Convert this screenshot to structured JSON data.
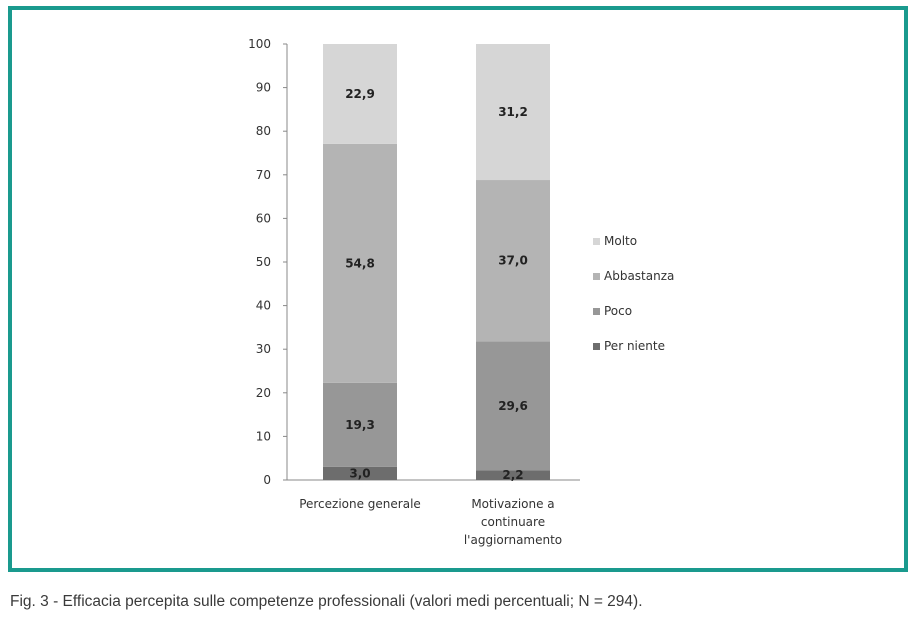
{
  "caption": "Fig. 3 - Efficacia percepita sulle competenze professionali (valori medi percentuali; N = 294).",
  "colors": {
    "frame": "#1a9a8e",
    "Molto": "#d6d6d6",
    "Abbastanza": "#b4b4b4",
    "Poco": "#979797",
    "Per niente": "#6d6d6d"
  },
  "chart_data": {
    "type": "bar",
    "stacked": true,
    "categories": [
      [
        "Percezione generale"
      ],
      [
        "Motivazione a",
        "continuare",
        "l'aggiornamento"
      ]
    ],
    "series": [
      {
        "name": "Per niente",
        "values": [
          3.0,
          2.2
        ],
        "labels": [
          "3,0",
          "2,2"
        ]
      },
      {
        "name": "Poco",
        "values": [
          19.3,
          29.6
        ],
        "labels": [
          "19,3",
          "29,6"
        ]
      },
      {
        "name": "Abbastanza",
        "values": [
          54.8,
          37.0
        ],
        "labels": [
          "54,8",
          "37,0"
        ]
      },
      {
        "name": "Molto",
        "values": [
          22.9,
          31.2
        ],
        "labels": [
          "22,9",
          "31,2"
        ]
      }
    ],
    "legend_order": [
      "Molto",
      "Abbastanza",
      "Poco",
      "Per niente"
    ],
    "y_ticks": [
      "0",
      "10",
      "20",
      "30",
      "40",
      "50",
      "60",
      "70",
      "80",
      "90",
      "100"
    ],
    "ylim": [
      0,
      100
    ],
    "title": "",
    "xlabel": "",
    "ylabel": "",
    "legend_position": "right",
    "grid": false
  }
}
